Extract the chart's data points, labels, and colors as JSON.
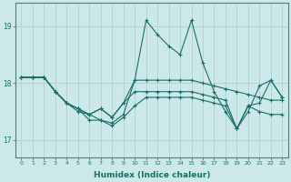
{
  "title": "",
  "xlabel": "Humidex (Indice chaleur)",
  "ylabel": "",
  "xlim": [
    -0.5,
    23.5
  ],
  "ylim": [
    16.7,
    19.4
  ],
  "yticks": [
    17,
    18,
    19
  ],
  "xticks": [
    0,
    1,
    2,
    3,
    4,
    5,
    6,
    7,
    8,
    9,
    10,
    11,
    12,
    13,
    14,
    15,
    16,
    17,
    18,
    19,
    20,
    21,
    22,
    23
  ],
  "bg_color": "#cce8e8",
  "grid_color": "#aacece",
  "line_color": "#1a6e6a",
  "series": [
    [
      18.1,
      18.1,
      18.1,
      17.85,
      17.65,
      17.5,
      17.45,
      17.35,
      17.3,
      17.45,
      18.05,
      19.1,
      18.85,
      18.65,
      18.5,
      19.1,
      18.35,
      17.85,
      17.5,
      17.2,
      17.5,
      17.95,
      18.05,
      17.75
    ],
    [
      18.1,
      18.1,
      18.1,
      17.85,
      17.65,
      17.55,
      17.45,
      17.55,
      17.4,
      17.65,
      18.05,
      18.05,
      18.05,
      18.05,
      18.05,
      18.05,
      18.0,
      17.95,
      17.9,
      17.85,
      17.8,
      17.75,
      17.7,
      17.7
    ],
    [
      18.1,
      18.1,
      18.1,
      17.85,
      17.65,
      17.55,
      17.45,
      17.55,
      17.4,
      17.65,
      17.85,
      17.85,
      17.85,
      17.85,
      17.85,
      17.85,
      17.8,
      17.75,
      17.7,
      17.2,
      17.6,
      17.5,
      17.45,
      17.45
    ],
    [
      18.1,
      18.1,
      18.1,
      17.85,
      17.65,
      17.55,
      17.35,
      17.35,
      17.25,
      17.4,
      17.6,
      17.75,
      17.75,
      17.75,
      17.75,
      17.75,
      17.7,
      17.65,
      17.6,
      17.2,
      17.6,
      17.65,
      18.05,
      17.75
    ]
  ]
}
